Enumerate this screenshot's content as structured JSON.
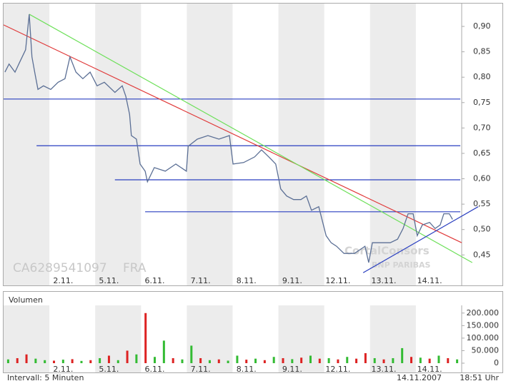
{
  "chart_data": [
    {
      "type": "line",
      "id_label": "CA6289541097",
      "exchange": "FRA",
      "watermark": [
        "CortalConsors",
        "BNP PARIBAS"
      ],
      "categories": [
        "2.11.",
        "5.11.",
        "6.11.",
        "7.11.",
        "8.11.",
        "9.11.",
        "12.11.",
        "13.11.",
        "14.11."
      ],
      "xlim": [
        0,
        10
      ],
      "ylim": [
        0.39,
        0.945
      ],
      "yticks": [
        {
          "value": 0.45,
          "label": "0,45"
        },
        {
          "value": 0.5,
          "label": "0,50"
        },
        {
          "value": 0.55,
          "label": "0,55"
        },
        {
          "value": 0.6,
          "label": "0,60"
        },
        {
          "value": 0.65,
          "label": "0,65"
        },
        {
          "value": 0.7,
          "label": "0,70"
        },
        {
          "value": 0.75,
          "label": "0,75"
        },
        {
          "value": 0.8,
          "label": "0,80"
        },
        {
          "value": 0.85,
          "label": "0,85"
        },
        {
          "value": 0.9,
          "label": "0,90"
        }
      ],
      "series": [
        {
          "color": "#5b6f95",
          "x": [
            0.03,
            0.12,
            0.25,
            0.37,
            0.48,
            0.56,
            0.62,
            0.69,
            0.75,
            0.87,
            1.03,
            1.19,
            1.34,
            1.45,
            1.58,
            1.73,
            1.89,
            2.04,
            2.2,
            2.43,
            2.59,
            2.67,
            2.75,
            2.79,
            2.9,
            2.98,
            3.09,
            3.14,
            3.29,
            3.53,
            3.76,
            3.99,
            4.03,
            4.23,
            4.46,
            4.7,
            4.93,
            5.01,
            5.24,
            5.48,
            5.63,
            5.79,
            5.94,
            6.05,
            6.18,
            6.33,
            6.49,
            6.61,
            6.72,
            6.88,
            7.04,
            7.15,
            7.27,
            7.43,
            7.66,
            7.89,
            7.97,
            8.05,
            8.21,
            8.44,
            8.6,
            8.72,
            8.83,
            8.94,
            9.03,
            9.14,
            9.3,
            9.42,
            9.53,
            9.61,
            9.73,
            9.8
          ],
          "values": [
            0.81,
            0.826,
            0.81,
            0.833,
            0.854,
            0.924,
            0.84,
            0.805,
            0.776,
            0.783,
            0.776,
            0.79,
            0.797,
            0.84,
            0.81,
            0.797,
            0.81,
            0.783,
            0.79,
            0.77,
            0.783,
            0.762,
            0.727,
            0.685,
            0.678,
            0.629,
            0.615,
            0.594,
            0.622,
            0.615,
            0.629,
            0.615,
            0.664,
            0.678,
            0.685,
            0.678,
            0.685,
            0.629,
            0.632,
            0.643,
            0.657,
            0.643,
            0.629,
            0.58,
            0.566,
            0.559,
            0.559,
            0.566,
            0.538,
            0.545,
            0.488,
            0.474,
            0.467,
            0.453,
            0.453,
            0.467,
            0.435,
            0.474,
            0.474,
            0.474,
            0.481,
            0.502,
            0.531,
            0.531,
            0.488,
            0.509,
            0.514,
            0.502,
            0.509,
            0.531,
            0.531,
            0.52
          ]
        }
      ],
      "trendlines": [
        {
          "color": "#2a3fc0",
          "x": [
            0,
            9.97
          ],
          "values": [
            0.757,
            0.757
          ]
        },
        {
          "color": "#2a3fc0",
          "x": [
            0.72,
            9.97
          ],
          "values": [
            0.665,
            0.665
          ]
        },
        {
          "color": "#2a3fc0",
          "x": [
            2.43,
            9.97
          ],
          "values": [
            0.598,
            0.598
          ]
        },
        {
          "color": "#2a3fc0",
          "x": [
            3.09,
            9.97
          ],
          "values": [
            0.535,
            0.535
          ]
        },
        {
          "color": "#e03a3a",
          "x": [
            0,
            10
          ],
          "values": [
            0.903,
            0.474
          ]
        },
        {
          "color": "#6ee05a",
          "x": [
            0.56,
            10.23
          ],
          "values": [
            0.924,
            0.435
          ]
        },
        {
          "color": "#2a3fc0",
          "x": [
            7.85,
            10.36
          ],
          "values": [
            0.415,
            0.545
          ]
        }
      ]
    },
    {
      "type": "bar",
      "title": "Volumen",
      "categories": [
        "2.11.",
        "5.11.",
        "6.11.",
        "7.11.",
        "8.11.",
        "9.11.",
        "12.11.",
        "13.11.",
        "14.11."
      ],
      "xlim": [
        0,
        10
      ],
      "ylim": [
        0,
        225000
      ],
      "yticks": [
        0,
        {
          "value": 50000,
          "label": "50.000"
        },
        {
          "value": 100000,
          "label": "100.000"
        },
        {
          "value": 150000,
          "label": "150.000"
        },
        {
          "value": 200000,
          "label": "200.000"
        }
      ],
      "x": [
        0.1,
        0.3,
        0.5,
        0.7,
        0.9,
        1.1,
        1.3,
        1.5,
        1.7,
        1.9,
        2.1,
        2.3,
        2.5,
        2.7,
        2.9,
        3.1,
        3.3,
        3.5,
        3.7,
        3.9,
        4.1,
        4.3,
        4.5,
        4.7,
        4.9,
        5.1,
        5.3,
        5.5,
        5.7,
        5.9,
        6.1,
        6.3,
        6.5,
        6.7,
        6.9,
        7.1,
        7.3,
        7.5,
        7.7,
        7.9,
        8.1,
        8.3,
        8.5,
        8.7,
        8.9,
        9.1,
        9.3,
        9.5,
        9.7,
        9.9
      ],
      "values": [
        15000,
        20000,
        35000,
        18000,
        12000,
        10000,
        14000,
        16000,
        9000,
        12000,
        20000,
        30000,
        12000,
        50000,
        35000,
        200000,
        25000,
        90000,
        20000,
        15000,
        70000,
        20000,
        12000,
        15000,
        10000,
        30000,
        14000,
        18000,
        12000,
        25000,
        20000,
        16000,
        22000,
        30000,
        18000,
        20000,
        15000,
        25000,
        18000,
        40000,
        20000,
        15000,
        20000,
        60000,
        25000,
        22000,
        18000,
        30000,
        20000,
        15000
      ],
      "colors": [
        "#33bb33",
        "#dd2222",
        "#dd2222",
        "#33bb33",
        "#33bb33",
        "#dd2222",
        "#33bb33",
        "#dd2222",
        "#33bb33",
        "#dd2222",
        "#33bb33",
        "#dd2222",
        "#33bb33",
        "#dd2222",
        "#33bb33",
        "#dd2222",
        "#33bb33",
        "#33bb33",
        "#dd2222",
        "#33bb33",
        "#33bb33",
        "#dd2222",
        "#33bb33",
        "#dd2222",
        "#33bb33",
        "#33bb33",
        "#dd2222",
        "#33bb33",
        "#dd2222",
        "#33bb33",
        "#dd2222",
        "#33bb33",
        "#dd2222",
        "#33bb33",
        "#dd2222",
        "#33bb33",
        "#dd2222",
        "#33bb33",
        "#dd2222",
        "#dd2222",
        "#33bb33",
        "#dd2222",
        "#33bb33",
        "#33bb33",
        "#dd2222",
        "#33bb33",
        "#dd2222",
        "#33bb33",
        "#dd2222",
        "#33bb33"
      ],
      "footer": {
        "interval": "Intervall: 5 Minuten",
        "date": "14.11.2007",
        "time": "18:51 Uhr"
      }
    }
  ]
}
